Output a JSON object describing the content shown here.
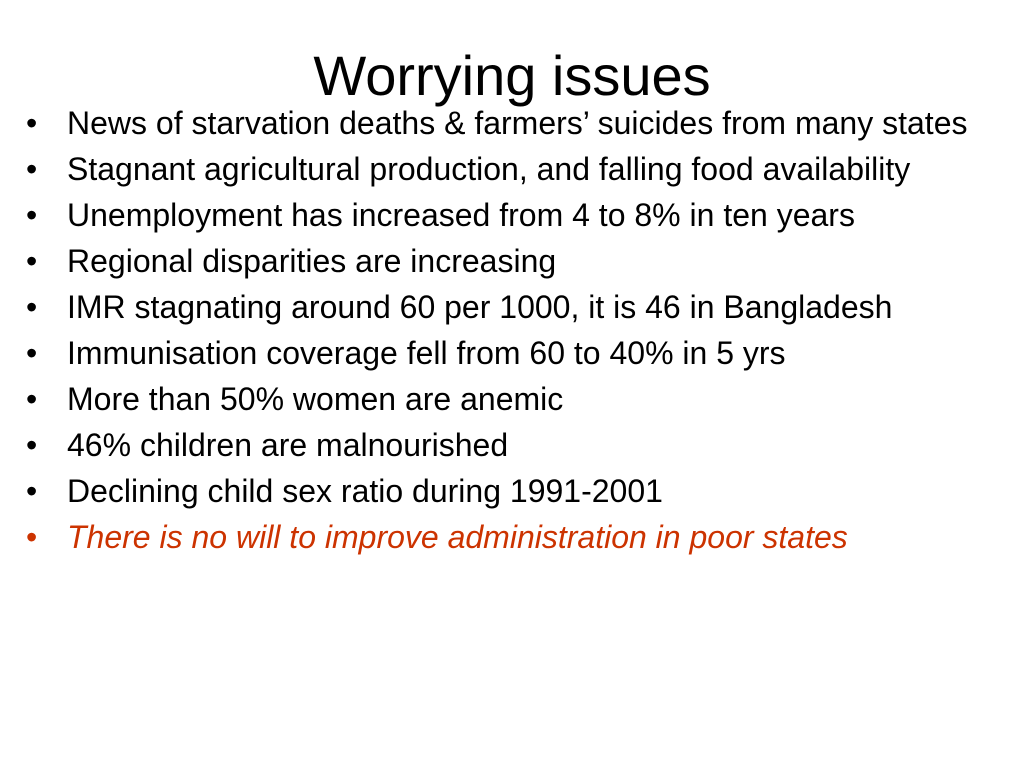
{
  "slide": {
    "title": "Worrying issues",
    "bullet_glyph": "•",
    "emphasis_color": "#cc3300",
    "bullets": [
      {
        "text": "News of starvation deaths & farmers’ suicides from many states"
      },
      {
        "text": "Stagnant agricultural production, and falling food availability"
      },
      {
        "text": "Unemployment has increased from 4 to 8% in ten years"
      },
      {
        "text": "Regional disparities are increasing"
      },
      {
        "text": "IMR stagnating around 60 per 1000, it is 46 in Bangladesh"
      },
      {
        "text": "Immunisation coverage fell from 60 to 40% in 5 yrs"
      },
      {
        "text": "More than 50% women are anemic"
      },
      {
        "text": "46% children are malnourished"
      },
      {
        "text": "Declining child sex ratio during 1991-2001"
      },
      {
        "text": "There is no will to improve administration in poor states"
      }
    ]
  }
}
